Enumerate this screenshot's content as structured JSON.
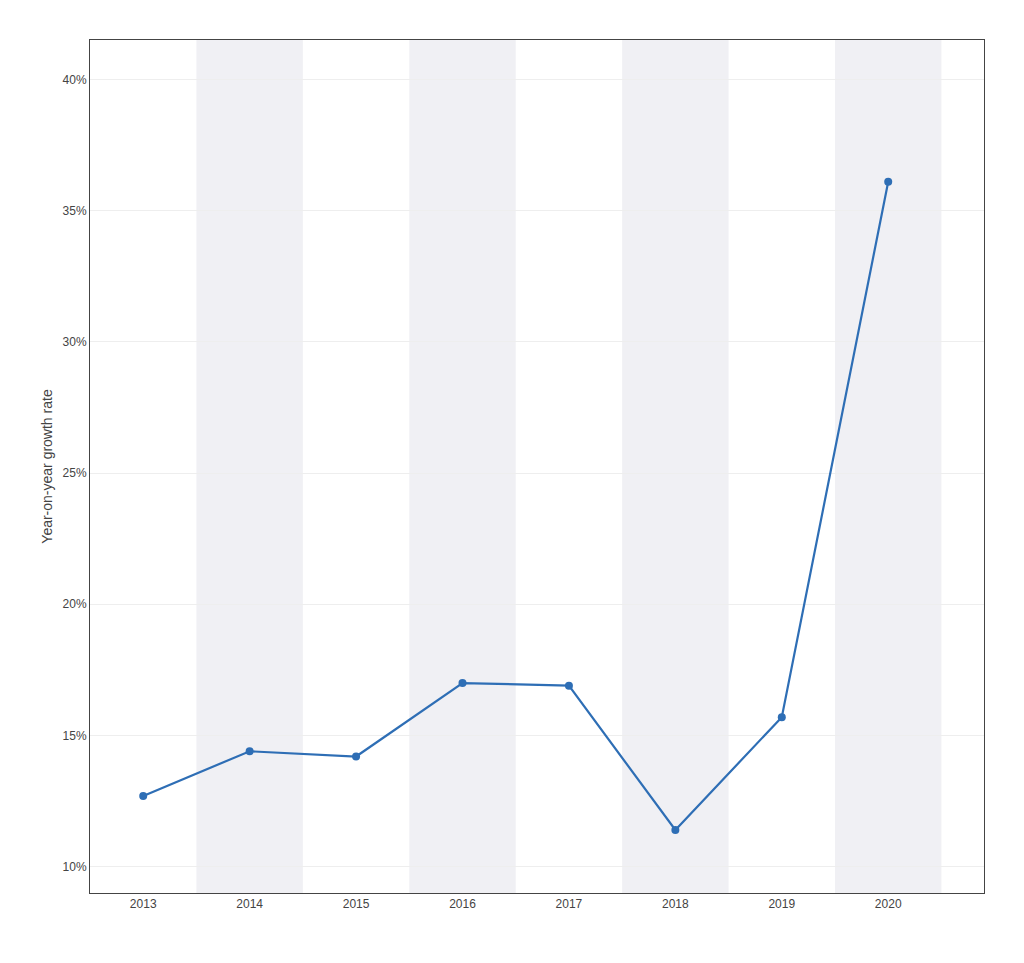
{
  "chart_data": {
    "type": "line",
    "x": [
      2013,
      2014,
      2015,
      2016,
      2017,
      2018,
      2019,
      2020
    ],
    "values": [
      0.127,
      0.144,
      0.142,
      0.17,
      0.169,
      0.114,
      0.157,
      0.361
    ],
    "color": "#2e6eb5",
    "marker": "circle",
    "ylabel": "Year-on-year growth rate",
    "xlim": [
      2012.5,
      2020.9
    ],
    "xticks": [
      2013,
      2014,
      2015,
      2016,
      2017,
      2018,
      2019,
      2020
    ],
    "ylim": [
      0.09,
      0.415
    ],
    "yticks": [
      {
        "value": 0.1,
        "label": "10%"
      },
      {
        "value": 0.15,
        "label": "15%"
      },
      {
        "value": 0.2,
        "label": "20%"
      },
      {
        "value": 0.25,
        "label": "25%"
      },
      {
        "value": 0.3,
        "label": "30%"
      },
      {
        "value": 0.35,
        "label": "35%"
      },
      {
        "value": 0.4,
        "label": "40%"
      }
    ],
    "grid": true
  }
}
